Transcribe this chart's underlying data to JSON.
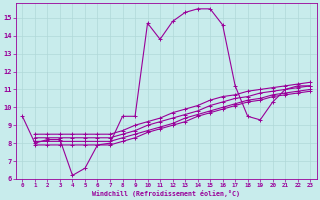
{
  "xlabel": "Windchill (Refroidissement éolien,°C)",
  "bg_color": "#c8ecec",
  "grid_color": "#b0d8d8",
  "line_color": "#990099",
  "xlim": [
    -0.5,
    23.5
  ],
  "ylim": [
    6,
    15.8
  ],
  "xticks": [
    0,
    1,
    2,
    3,
    4,
    5,
    6,
    7,
    8,
    9,
    10,
    11,
    12,
    13,
    14,
    15,
    16,
    17,
    18,
    19,
    20,
    21,
    22,
    23
  ],
  "yticks": [
    6,
    7,
    8,
    9,
    10,
    11,
    12,
    13,
    14,
    15
  ],
  "line1_x": [
    0,
    1,
    2,
    3,
    4,
    5,
    6,
    7,
    8,
    9,
    10,
    11,
    12,
    13,
    14,
    15,
    16,
    17,
    18,
    19,
    20,
    21,
    22,
    23
  ],
  "line1_y": [
    9.5,
    8.0,
    8.2,
    8.2,
    6.2,
    6.6,
    7.9,
    8.0,
    9.5,
    9.5,
    14.7,
    13.8,
    14.8,
    15.3,
    15.5,
    15.5,
    14.6,
    11.2,
    9.5,
    9.3,
    10.3,
    11.0,
    11.2,
    11.2
  ],
  "line2_x": [
    1,
    2,
    3,
    4,
    5,
    6,
    7,
    8,
    9,
    10,
    11,
    12,
    13,
    14,
    15,
    16,
    17,
    18,
    19,
    20,
    21,
    22,
    23
  ],
  "line2_y": [
    8.1,
    8.1,
    8.1,
    8.1,
    8.1,
    8.1,
    8.1,
    8.3,
    8.5,
    8.7,
    8.9,
    9.1,
    9.4,
    9.6,
    9.8,
    10.0,
    10.2,
    10.4,
    10.5,
    10.7,
    10.8,
    10.9,
    11.0
  ],
  "line3_x": [
    1,
    2,
    3,
    4,
    5,
    6,
    7,
    8,
    9,
    10,
    11,
    12,
    13,
    14,
    15,
    16,
    17,
    18,
    19,
    20,
    21,
    22,
    23
  ],
  "line3_y": [
    7.9,
    7.9,
    7.9,
    7.9,
    7.9,
    7.9,
    7.9,
    8.1,
    8.3,
    8.6,
    8.8,
    9.0,
    9.2,
    9.5,
    9.7,
    9.9,
    10.1,
    10.3,
    10.4,
    10.6,
    10.7,
    10.8,
    10.9
  ],
  "line4_x": [
    1,
    2,
    3,
    4,
    5,
    6,
    7,
    8,
    9,
    10,
    11,
    12,
    13,
    14,
    15,
    16,
    17,
    18,
    19,
    20,
    21,
    22,
    23
  ],
  "line4_y": [
    8.3,
    8.3,
    8.3,
    8.3,
    8.3,
    8.3,
    8.3,
    8.5,
    8.7,
    9.0,
    9.2,
    9.4,
    9.6,
    9.8,
    10.1,
    10.3,
    10.5,
    10.6,
    10.8,
    10.9,
    11.0,
    11.1,
    11.2
  ],
  "line5_x": [
    1,
    2,
    3,
    4,
    5,
    6,
    7,
    8,
    9,
    10,
    11,
    12,
    13,
    14,
    15,
    16,
    17,
    18,
    19,
    20,
    21,
    22,
    23
  ],
  "line5_y": [
    8.5,
    8.5,
    8.5,
    8.5,
    8.5,
    8.5,
    8.5,
    8.7,
    9.0,
    9.2,
    9.4,
    9.7,
    9.9,
    10.1,
    10.4,
    10.6,
    10.7,
    10.9,
    11.0,
    11.1,
    11.2,
    11.3,
    11.4
  ]
}
